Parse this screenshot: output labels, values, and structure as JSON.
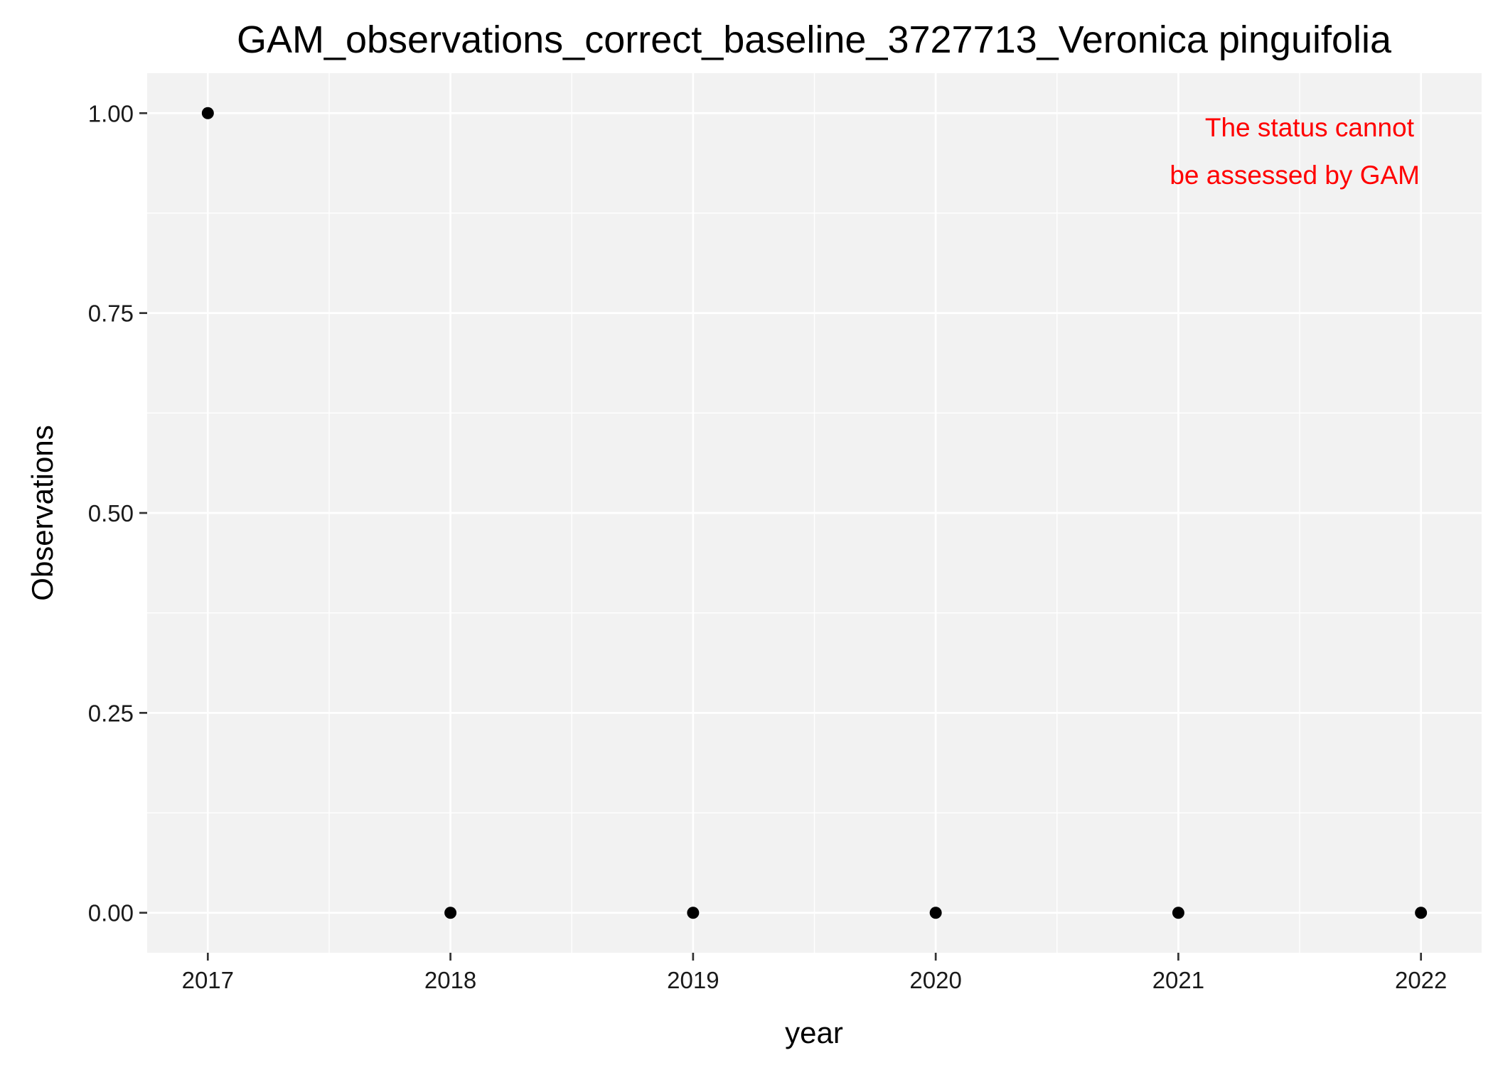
{
  "chart_data": {
    "type": "scatter",
    "title": "GAM_observations_correct_baseline_3727713_Veronica pinguifolia",
    "xlabel": "year",
    "ylabel": "Observations",
    "x": [
      2017,
      2018,
      2019,
      2020,
      2021,
      2022
    ],
    "y": [
      1,
      0,
      0,
      0,
      0,
      0
    ],
    "xlim": [
      2016.75,
      2022.25
    ],
    "ylim": [
      -0.05,
      1.05
    ],
    "x_ticks": [
      2017,
      2018,
      2019,
      2020,
      2021,
      2022
    ],
    "x_tick_labels": [
      "2017",
      "2018",
      "2019",
      "2020",
      "2021",
      "2022"
    ],
    "y_ticks": [
      0,
      0.25,
      0.5,
      0.75,
      1
    ],
    "y_tick_labels": [
      "0.00",
      "0.25",
      "0.50",
      "0.75",
      "1.00"
    ],
    "grid": true,
    "legend": false,
    "annotation": {
      "lines": [
        "The status cannot",
        "be assessed by GAM"
      ],
      "color": "#ff0000",
      "placement": "top-right"
    },
    "colors": {
      "panel_background": "#f2f2f2",
      "grid": "#ffffff",
      "point": "#000000"
    }
  }
}
